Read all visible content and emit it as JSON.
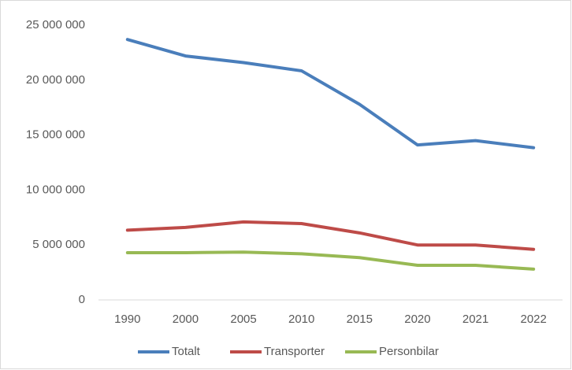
{
  "chart_data": {
    "type": "line",
    "categories": [
      "1990",
      "2000",
      "2005",
      "2010",
      "2015",
      "2020",
      "2021",
      "2022"
    ],
    "series": [
      {
        "name": "Totalt",
        "color": "#4a7ebb",
        "values": [
          23700000,
          22200000,
          21600000,
          20850000,
          17800000,
          14100000,
          14500000,
          13850000
        ]
      },
      {
        "name": "Transporter",
        "color": "#be4b48",
        "values": [
          6350000,
          6600000,
          7100000,
          6950000,
          6100000,
          5000000,
          5000000,
          4600000
        ]
      },
      {
        "name": "Personbilar",
        "color": "#98b954",
        "values": [
          4300000,
          4300000,
          4350000,
          4200000,
          3850000,
          3150000,
          3150000,
          2800000
        ]
      }
    ],
    "ylim": [
      0,
      25000000
    ],
    "yticks": [
      0,
      {
        "value": 5000000,
        "label": "5 000 000"
      },
      {
        "value": 10000000,
        "label": "10 000 000"
      },
      {
        "value": 15000000,
        "label": "15 000 000"
      },
      {
        "value": 20000000,
        "label": "20 000 000"
      },
      {
        "value": 25000000,
        "label": "25 000 000"
      }
    ],
    "grid": false,
    "legend": "bottom"
  }
}
